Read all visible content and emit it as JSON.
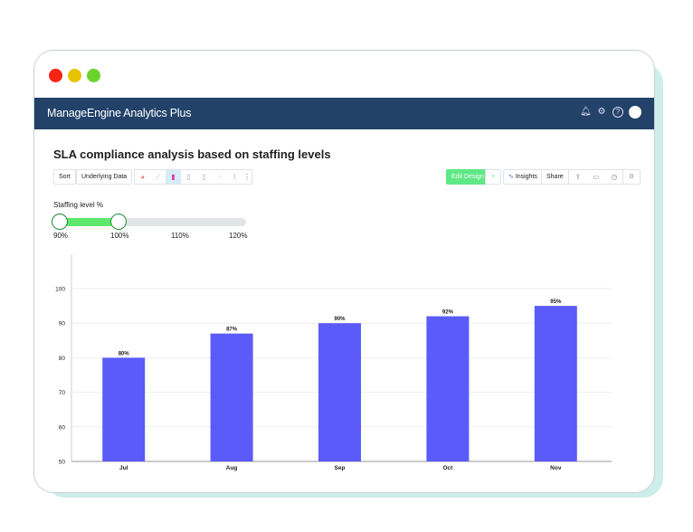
{
  "window": {
    "buttons": [
      {
        "name": "close",
        "color": "#f52514"
      },
      {
        "name": "minimize",
        "color": "#e8c300"
      },
      {
        "name": "maximize",
        "color": "#6bd42a"
      }
    ]
  },
  "header": {
    "logo": "ManageEngine Analytics Plus",
    "icons": [
      "bell-icon",
      "gear-icon",
      "help-icon",
      "avatar"
    ]
  },
  "report": {
    "title": "SLA compliance analysis based on staffing levels"
  },
  "toolbar": {
    "sort": "Sort",
    "underlying": "Underlying Data",
    "chart_types": [
      "pie",
      "line",
      "bar",
      "stacked-bar",
      "grouped-bar",
      "scatter",
      "map"
    ],
    "edit_design": "Edit Design",
    "add": "+",
    "insights": "Insights",
    "share": "Share",
    "right_icons": [
      "export-icon",
      "comment-icon",
      "schedule-icon",
      "settings-icon"
    ]
  },
  "slider": {
    "label": "Staffing level %",
    "ticks": [
      "90%",
      "100%",
      "110%",
      "120%"
    ],
    "range": [
      90,
      100
    ],
    "min": 90,
    "max": 120,
    "fill_color": "#5ee86b"
  },
  "chart_data": {
    "type": "bar",
    "categories": [
      "Jul",
      "Aug",
      "Sep",
      "Oct",
      "Nov"
    ],
    "values": [
      80,
      87,
      90,
      92,
      95
    ],
    "data_labels": [
      "80%",
      "87%",
      "90%",
      "92%",
      "95%"
    ],
    "ylim": [
      50,
      100
    ],
    "yticks": [
      50,
      60,
      70,
      80,
      90,
      100
    ],
    "grid": true,
    "bar_color": "#5b5bfa",
    "xlabel": "",
    "ylabel": ""
  }
}
